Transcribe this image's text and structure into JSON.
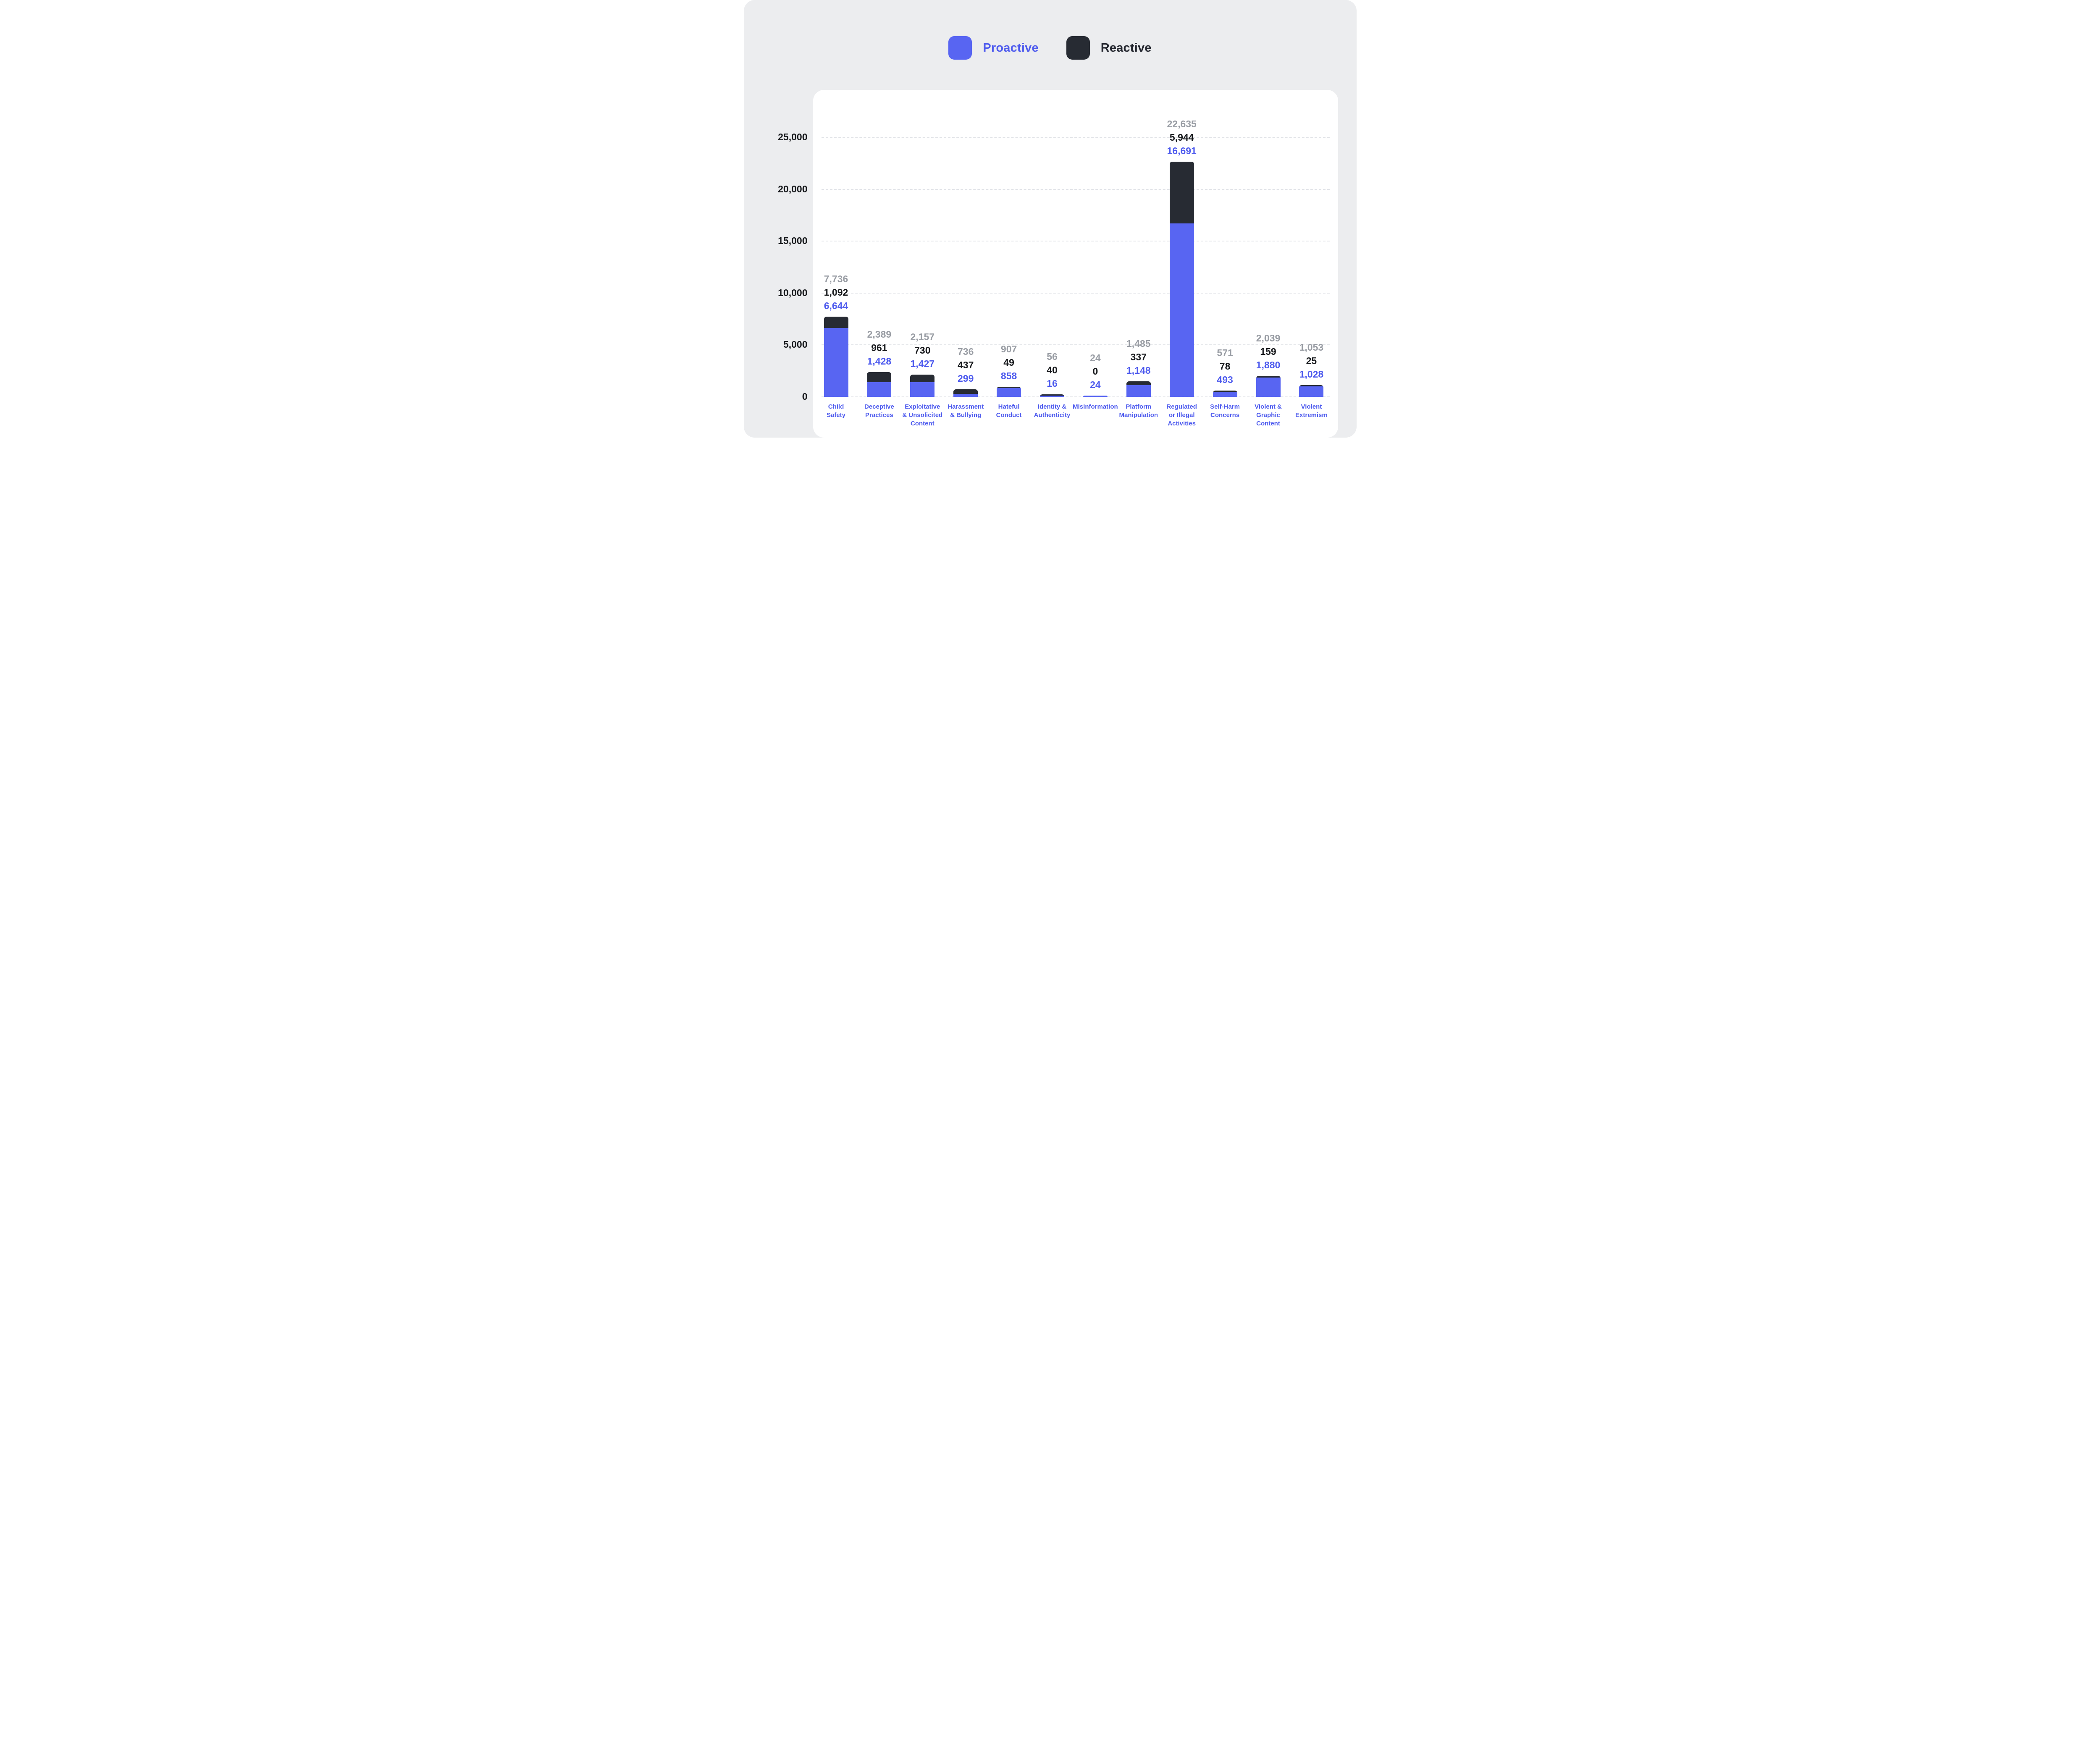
{
  "legend": {
    "proactive_label": "Proactive",
    "reactive_label": "Reactive"
  },
  "colors": {
    "proactive": "#5865F2",
    "reactive": "#272B33",
    "background": "#ECEDEF",
    "card": "#FFFFFF",
    "gridline": "#E2E4E8",
    "total_label": "#999DA4",
    "reactive_value_label": "#17191C",
    "proactive_value_label": "#4E5BEE",
    "category_label": "#4E5BEE",
    "axis_label": "#17191C"
  },
  "chart_data": {
    "type": "bar",
    "stacked": true,
    "title": "",
    "xlabel": "",
    "ylabel": "",
    "legend_position": "top",
    "grid": "dashed horizontal",
    "y_ticks": [
      0,
      5000,
      10000,
      15000,
      20000,
      25000
    ],
    "ylim": [
      0,
      28500
    ],
    "categories": [
      "Child\nSafety",
      "Deceptive\nPractices",
      "Exploitative\n& Unsolicited\nContent",
      "Harassment\n& Bullying",
      "Hateful\nConduct",
      "Identity &\nAuthenticity",
      "Misinformation",
      "Platform\nManipulation",
      "Regulated\nor Illegal\nActivities",
      "Self-Harm\nConcerns",
      "Violent &\nGraphic\nContent",
      "Violent\nExtremism"
    ],
    "series": [
      {
        "name": "Proactive",
        "values": [
          6644,
          1428,
          1427,
          299,
          858,
          16,
          24,
          1148,
          16691,
          493,
          1880,
          1028
        ]
      },
      {
        "name": "Reactive",
        "values": [
          1092,
          961,
          730,
          437,
          49,
          40,
          0,
          337,
          5944,
          78,
          159,
          25
        ]
      }
    ],
    "totals": [
      7736,
      2389,
      2157,
      736,
      907,
      56,
      24,
      1485,
      22635,
      571,
      2039,
      1053
    ]
  }
}
